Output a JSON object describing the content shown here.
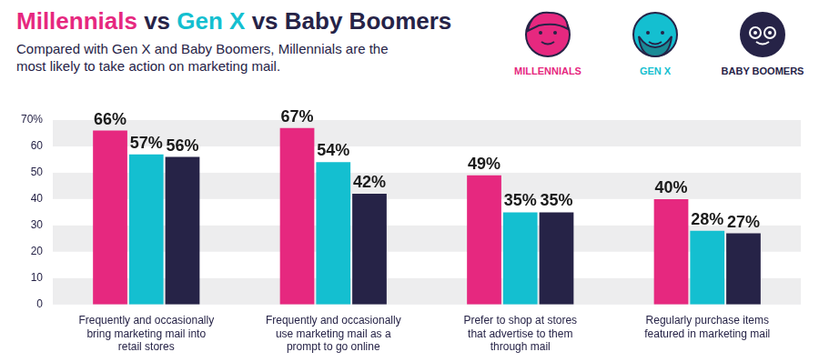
{
  "chart_data": {
    "type": "bar",
    "title": "Millennials vs Gen X vs Baby Boomers",
    "subtitle": "Compared with Gen X and Baby Boomers, Millennials are the most likely to take action on marketing mail.",
    "categories": [
      "Frequently and occasionally bring marketing mail into retail stores",
      "Frequently and occasionally use marketing mail as a prompt to go online",
      "Prefer to shop at stores that advertise to them through mail",
      "Regularly purchase items featured in marketing mail"
    ],
    "series": [
      {
        "name": "MILLENNIALS",
        "color": "#e6287f",
        "values": [
          66,
          67,
          49,
          40
        ],
        "value_labels": [
          "66%",
          "67%",
          "49%",
          "40%"
        ]
      },
      {
        "name": "GEN X",
        "color": "#14bfd0",
        "values": [
          57,
          54,
          35,
          28
        ],
        "value_labels": [
          "57%",
          "54%",
          "35%",
          "28%"
        ]
      },
      {
        "name": "BABY BOOMERS",
        "color": "#262347",
        "values": [
          56,
          42,
          35,
          27
        ],
        "value_labels": [
          "56%",
          "42%",
          "35%",
          "27%"
        ]
      }
    ],
    "ylim": [
      0,
      70
    ],
    "yticks": [
      0,
      10,
      20,
      30,
      40,
      50,
      60,
      {
        "value": 70,
        "label": "70%"
      }
    ],
    "grid": true,
    "legend": "top right",
    "data_labels": true
  }
}
